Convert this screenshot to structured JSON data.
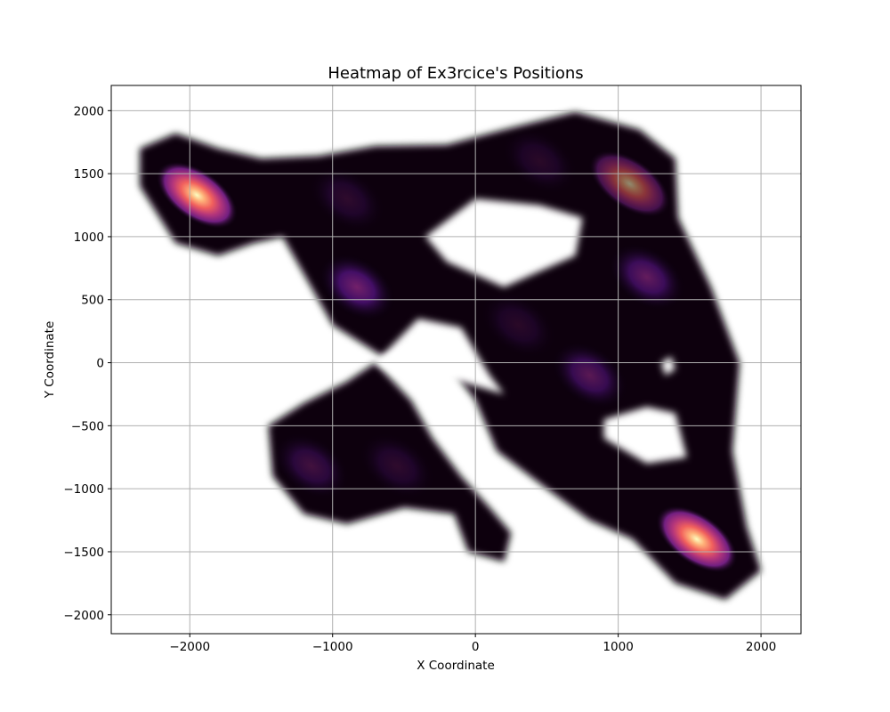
{
  "chart_data": {
    "type": "heatmap",
    "title": "Heatmap of Ex3rcice's Positions",
    "xlabel": "X Coordinate",
    "ylabel": "Y Coordinate",
    "xlim": [
      -2550,
      2280
    ],
    "ylim": [
      -2150,
      2200
    ],
    "xticks": [
      -2000,
      -1000,
      0,
      1000,
      2000
    ],
    "xtick_labels": [
      "−2000",
      "−1000",
      "0",
      "1000",
      "2000"
    ],
    "yticks": [
      -2000,
      -1500,
      -1000,
      -500,
      0,
      500,
      1000,
      1500,
      2000
    ],
    "ytick_labels": [
      "−2000",
      "−1500",
      "−1000",
      "−500",
      "0",
      "500",
      "1000",
      "1500",
      "2000"
    ],
    "grid": true,
    "colormap": "magma",
    "density_peaks": [
      {
        "x": -1950,
        "y": 1330,
        "intensity": 1.0
      },
      {
        "x": 1550,
        "y": -1400,
        "intensity": 1.0
      },
      {
        "x": 1080,
        "y": 1420,
        "intensity": 0.55
      },
      {
        "x": -830,
        "y": 600,
        "intensity": 0.42
      },
      {
        "x": 1200,
        "y": 680,
        "intensity": 0.36
      },
      {
        "x": 800,
        "y": -100,
        "intensity": 0.32
      },
      {
        "x": -1150,
        "y": -820,
        "intensity": 0.22
      },
      {
        "x": -550,
        "y": -820,
        "intensity": 0.14
      },
      {
        "x": 300,
        "y": 300,
        "intensity": 0.12
      },
      {
        "x": -900,
        "y": 1300,
        "intensity": 0.14
      },
      {
        "x": 450,
        "y": 1600,
        "intensity": 0.12
      }
    ]
  }
}
